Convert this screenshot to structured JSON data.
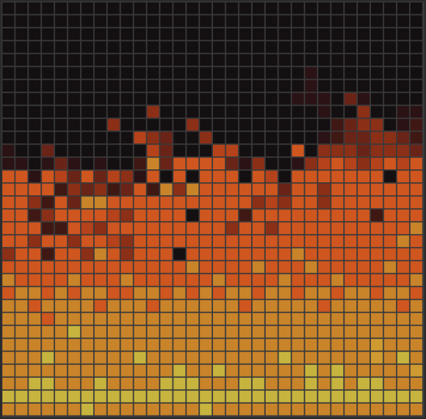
{
  "grid": {
    "palette": [
      "#141012",
      "#2a1215",
      "#3f1813",
      "#6a2417",
      "#8c2f17",
      "#b5421a",
      "#d0561f",
      "#dc6a26",
      "#c9842a",
      "#cf9a30",
      "#c6b43e"
    ],
    "rows": [
      [
        0,
        0,
        0,
        0,
        0,
        0,
        0,
        0,
        0,
        0,
        0,
        0,
        0,
        0,
        0,
        0,
        0,
        0,
        0,
        0,
        0,
        0,
        0,
        0,
        0,
        0,
        0,
        0,
        0,
        0,
        0,
        0
      ],
      [
        0,
        0,
        0,
        0,
        0,
        0,
        0,
        0,
        0,
        0,
        0,
        0,
        0,
        0,
        0,
        0,
        0,
        0,
        0,
        0,
        0,
        0,
        0,
        0,
        0,
        0,
        0,
        0,
        0,
        0,
        0,
        0
      ],
      [
        0,
        0,
        0,
        0,
        0,
        0,
        0,
        0,
        0,
        0,
        0,
        0,
        0,
        0,
        0,
        0,
        0,
        0,
        0,
        0,
        0,
        0,
        0,
        0,
        0,
        0,
        0,
        0,
        0,
        0,
        0,
        0
      ],
      [
        0,
        0,
        0,
        0,
        0,
        0,
        0,
        0,
        0,
        0,
        0,
        0,
        0,
        0,
        0,
        0,
        0,
        0,
        0,
        0,
        0,
        0,
        0,
        0,
        0,
        0,
        0,
        0,
        0,
        0,
        0,
        0
      ],
      [
        0,
        0,
        0,
        0,
        0,
        0,
        0,
        0,
        0,
        0,
        0,
        0,
        0,
        0,
        0,
        0,
        0,
        0,
        0,
        0,
        0,
        0,
        0,
        0,
        0,
        0,
        0,
        0,
        0,
        0,
        0,
        0
      ],
      [
        0,
        0,
        0,
        0,
        0,
        0,
        0,
        0,
        0,
        0,
        0,
        0,
        0,
        0,
        0,
        0,
        0,
        0,
        0,
        0,
        0,
        0,
        0,
        1,
        0,
        0,
        0,
        0,
        0,
        0,
        0,
        0
      ],
      [
        0,
        0,
        0,
        0,
        0,
        0,
        0,
        0,
        0,
        0,
        0,
        0,
        0,
        0,
        0,
        0,
        0,
        0,
        0,
        0,
        0,
        0,
        0,
        1,
        0,
        0,
        0,
        0,
        0,
        0,
        0,
        0
      ],
      [
        0,
        0,
        0,
        0,
        0,
        0,
        0,
        0,
        0,
        0,
        0,
        0,
        0,
        0,
        0,
        0,
        0,
        0,
        0,
        0,
        0,
        0,
        1,
        1,
        1,
        0,
        3,
        1,
        0,
        0,
        0,
        0
      ],
      [
        0,
        0,
        0,
        0,
        0,
        0,
        0,
        0,
        0,
        0,
        0,
        4,
        0,
        0,
        0,
        0,
        0,
        0,
        0,
        0,
        0,
        0,
        0,
        0,
        1,
        0,
        0,
        4,
        0,
        0,
        1,
        1
      ],
      [
        0,
        0,
        0,
        0,
        0,
        0,
        0,
        0,
        4,
        0,
        0,
        0,
        0,
        0,
        4,
        0,
        0,
        0,
        0,
        0,
        0,
        0,
        0,
        0,
        0,
        2,
        3,
        4,
        4,
        0,
        1,
        2
      ],
      [
        0,
        0,
        0,
        0,
        0,
        0,
        0,
        0,
        0,
        0,
        5,
        4,
        3,
        0,
        0,
        4,
        0,
        0,
        0,
        0,
        0,
        0,
        0,
        0,
        1,
        2,
        3,
        3,
        4,
        4,
        3,
        2
      ],
      [
        1,
        0,
        0,
        3,
        0,
        0,
        0,
        0,
        0,
        0,
        0,
        5,
        3,
        0,
        0,
        0,
        5,
        5,
        0,
        0,
        0,
        0,
        6,
        0,
        4,
        4,
        4,
        3,
        4,
        4,
        4,
        3
      ],
      [
        1,
        1,
        0,
        1,
        3,
        1,
        0,
        1,
        0,
        0,
        2,
        8,
        3,
        6,
        6,
        6,
        6,
        3,
        1,
        4,
        0,
        0,
        1,
        4,
        5,
        6,
        5,
        4,
        5,
        6,
        5,
        6
      ],
      [
        6,
        6,
        1,
        6,
        5,
        3,
        6,
        3,
        5,
        4,
        1,
        6,
        0,
        6,
        0,
        6,
        6,
        6,
        0,
        6,
        5,
        0,
        6,
        6,
        6,
        6,
        6,
        6,
        6,
        0,
        6,
        6
      ],
      [
        6,
        6,
        6,
        6,
        2,
        4,
        3,
        4,
        2,
        3,
        6,
        2,
        8,
        4,
        8,
        6,
        6,
        6,
        6,
        6,
        6,
        3,
        6,
        6,
        4,
        6,
        6,
        6,
        6,
        6,
        6,
        6
      ],
      [
        6,
        6,
        4,
        2,
        6,
        3,
        8,
        8,
        6,
        6,
        6,
        6,
        6,
        6,
        6,
        6,
        6,
        6,
        6,
        4,
        5,
        4,
        6,
        6,
        4,
        6,
        6,
        6,
        6,
        6,
        6,
        6
      ],
      [
        6,
        6,
        2,
        4,
        6,
        6,
        6,
        6,
        5,
        4,
        6,
        6,
        6,
        6,
        0,
        6,
        6,
        6,
        2,
        6,
        6,
        6,
        6,
        6,
        6,
        6,
        6,
        6,
        2,
        6,
        6,
        6
      ],
      [
        6,
        6,
        6,
        2,
        2,
        6,
        5,
        4,
        6,
        6,
        6,
        6,
        6,
        6,
        6,
        6,
        6,
        4,
        6,
        6,
        4,
        6,
        6,
        6,
        6,
        6,
        6,
        6,
        6,
        6,
        6,
        8
      ],
      [
        6,
        6,
        4,
        6,
        6,
        4,
        6,
        6,
        5,
        4,
        6,
        6,
        6,
        6,
        6,
        6,
        6,
        6,
        6,
        6,
        6,
        6,
        6,
        6,
        6,
        6,
        6,
        6,
        6,
        6,
        8,
        6
      ],
      [
        4,
        6,
        6,
        2,
        6,
        6,
        4,
        8,
        6,
        4,
        6,
        6,
        6,
        0,
        6,
        6,
        6,
        6,
        6,
        6,
        6,
        6,
        8,
        6,
        6,
        6,
        6,
        6,
        6,
        6,
        6,
        6
      ],
      [
        6,
        6,
        6,
        6,
        6,
        6,
        6,
        6,
        6,
        6,
        6,
        6,
        6,
        6,
        8,
        6,
        6,
        6,
        6,
        8,
        6,
        6,
        6,
        8,
        6,
        6,
        6,
        6,
        6,
        8,
        6,
        6
      ],
      [
        8,
        6,
        6,
        6,
        6,
        8,
        6,
        6,
        6,
        8,
        6,
        6,
        6,
        6,
        6,
        6,
        8,
        6,
        6,
        6,
        6,
        8,
        6,
        6,
        6,
        8,
        6,
        6,
        6,
        6,
        6,
        8
      ],
      [
        6,
        8,
        8,
        6,
        8,
        6,
        8,
        8,
        6,
        6,
        8,
        8,
        6,
        8,
        6,
        8,
        6,
        8,
        8,
        6,
        8,
        8,
        6,
        8,
        8,
        6,
        8,
        8,
        6,
        8,
        8,
        6
      ],
      [
        8,
        8,
        6,
        8,
        8,
        8,
        8,
        6,
        8,
        8,
        8,
        6,
        8,
        8,
        8,
        8,
        8,
        8,
        6,
        8,
        8,
        8,
        8,
        8,
        6,
        8,
        8,
        8,
        8,
        8,
        6,
        8
      ],
      [
        8,
        8,
        8,
        6,
        8,
        8,
        8,
        8,
        8,
        8,
        8,
        8,
        8,
        8,
        8,
        8,
        8,
        8,
        8,
        8,
        8,
        8,
        8,
        8,
        8,
        8,
        8,
        8,
        8,
        8,
        8,
        8
      ],
      [
        8,
        8,
        8,
        8,
        8,
        10,
        8,
        8,
        8,
        8,
        8,
        8,
        8,
        8,
        8,
        8,
        8,
        8,
        8,
        8,
        8,
        8,
        8,
        8,
        8,
        8,
        8,
        8,
        8,
        8,
        8,
        8
      ],
      [
        8,
        8,
        8,
        8,
        8,
        8,
        8,
        8,
        8,
        8,
        8,
        8,
        8,
        8,
        8,
        8,
        8,
        8,
        8,
        8,
        8,
        8,
        8,
        8,
        8,
        8,
        8,
        8,
        9,
        8,
        8,
        8
      ],
      [
        8,
        8,
        8,
        10,
        8,
        8,
        8,
        8,
        8,
        8,
        10,
        8,
        8,
        8,
        8,
        8,
        8,
        8,
        8,
        8,
        8,
        10,
        8,
        8,
        8,
        8,
        8,
        8,
        9,
        8,
        10,
        8
      ],
      [
        8,
        8,
        8,
        8,
        8,
        8,
        8,
        8,
        8,
        8,
        8,
        8,
        8,
        10,
        8,
        8,
        10,
        8,
        8,
        8,
        8,
        8,
        8,
        10,
        8,
        10,
        8,
        8,
        8,
        8,
        8,
        9
      ],
      [
        8,
        8,
        10,
        10,
        8,
        8,
        8,
        10,
        8,
        8,
        8,
        8,
        10,
        10,
        10,
        8,
        8,
        8,
        10,
        10,
        8,
        8,
        8,
        10,
        8,
        10,
        8,
        10,
        10,
        8,
        8,
        8
      ],
      [
        10,
        10,
        10,
        10,
        10,
        10,
        10,
        10,
        10,
        10,
        10,
        10,
        10,
        10,
        10,
        10,
        10,
        10,
        10,
        10,
        10,
        10,
        10,
        10,
        10,
        10,
        10,
        10,
        10,
        10,
        10,
        10
      ],
      [
        8,
        8,
        8,
        8,
        8,
        8,
        10,
        8,
        8,
        8,
        8,
        8,
        8,
        8,
        8,
        10,
        8,
        8,
        8,
        8,
        8,
        8,
        8,
        8,
        8,
        8,
        8,
        8,
        8,
        8,
        8,
        8
      ]
    ]
  }
}
